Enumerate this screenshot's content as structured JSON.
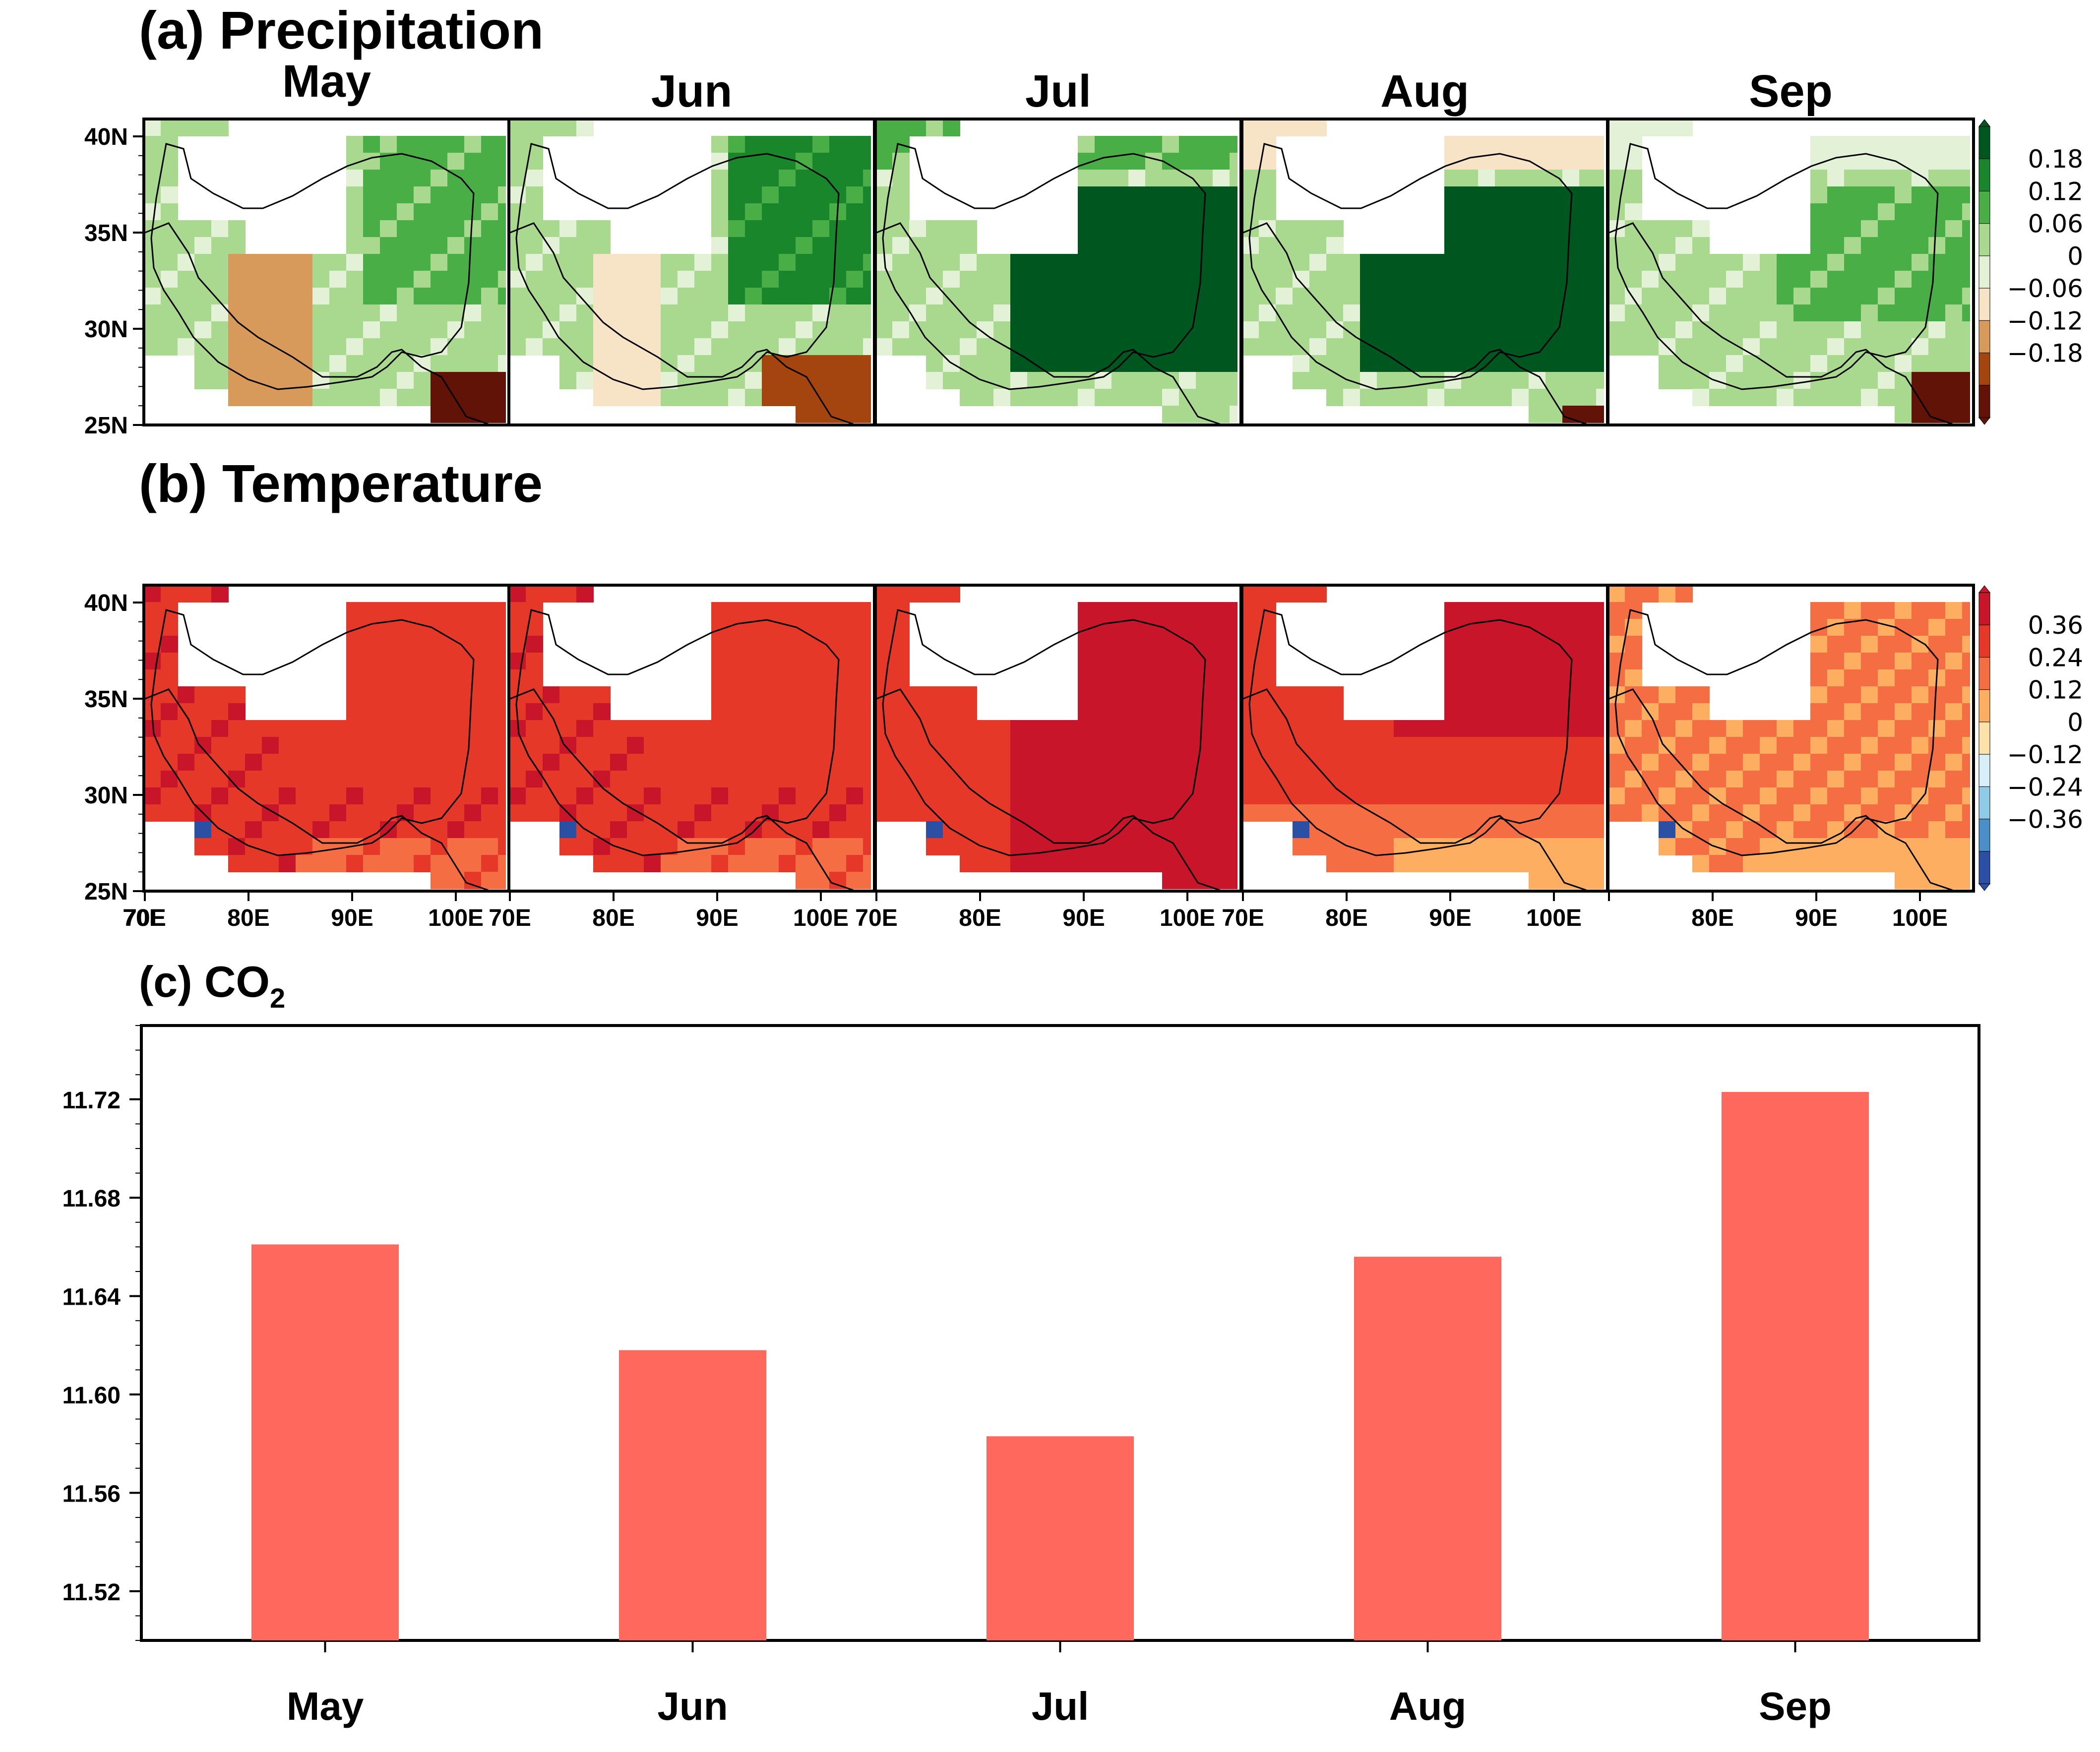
{
  "panel_a": {
    "title": "(a) Precipitation",
    "months": [
      "May",
      "Jun",
      "Jul",
      "Aug",
      "Sep"
    ],
    "colorbar_ticks": [
      "0.18",
      "0.12",
      "0.06",
      "0",
      "−0.06",
      "−0.12",
      "−0.18"
    ],
    "colorbar_colors": [
      "#00561f",
      "#19862b",
      "#4aae47",
      "#a8d98f",
      "#e3f2d6",
      "#f7e3c5",
      "#d89a5a",
      "#a4450f",
      "#611308"
    ]
  },
  "panel_b": {
    "title": "(b) Temperature",
    "colorbar_ticks": [
      "0.36",
      "0.24",
      "0.12",
      "0",
      "−0.12",
      "−0.24",
      "−0.36"
    ],
    "colorbar_colors": [
      "#c8152a",
      "#e53828",
      "#f46d43",
      "#fdae61",
      "#fee2a9",
      "#d9eff7",
      "#8fcbe6",
      "#4a8fc8",
      "#2b4fa3"
    ]
  },
  "map_axes": {
    "lat_ticks": [
      "40N",
      "35N",
      "30N",
      "25N"
    ],
    "lon_ticks": [
      "70E",
      "80E",
      "90E",
      "100E"
    ]
  },
  "panel_c": {
    "title_main": "(c) CO",
    "title_sub": "2"
  },
  "chart_data": {
    "type": "bar",
    "title": "(c) CO2",
    "categories": [
      "May",
      "Jun",
      "Jul",
      "Aug",
      "Sep"
    ],
    "values": [
      11.661,
      11.618,
      11.583,
      11.656,
      11.723
    ],
    "ylim": [
      11.5,
      11.75
    ],
    "yticks": [
      "11.52",
      "11.56",
      "11.60",
      "11.64",
      "11.68",
      "11.72"
    ],
    "bar_color": "#ff685d",
    "xlabel": "",
    "ylabel": ""
  }
}
